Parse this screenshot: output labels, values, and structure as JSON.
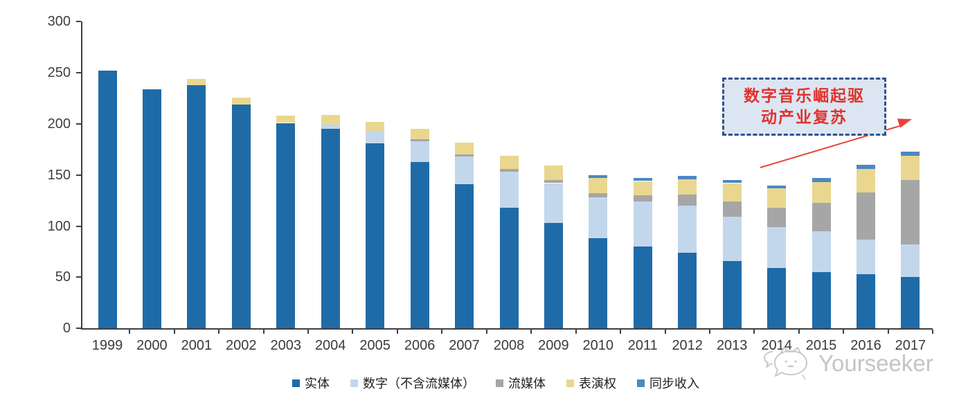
{
  "chart_data": {
    "type": "bar",
    "stacked": true,
    "categories": [
      "1999",
      "2000",
      "2001",
      "2002",
      "2003",
      "2004",
      "2005",
      "2006",
      "2007",
      "2008",
      "2009",
      "2010",
      "2011",
      "2012",
      "2013",
      "2014",
      "2015",
      "2016",
      "2017"
    ],
    "series": [
      {
        "name": "实体",
        "color": "#1f6ba8",
        "values": [
          252,
          234,
          238,
          219,
          201,
          195,
          181,
          163,
          141,
          118,
          103,
          88,
          80,
          74,
          66,
          59,
          55,
          53,
          50
        ]
      },
      {
        "name": "数字（不含流媒体）",
        "color": "#c3d7ec",
        "values": [
          0,
          0,
          0,
          0,
          0,
          4,
          12,
          20,
          27,
          35,
          39,
          40,
          44,
          46,
          43,
          40,
          40,
          34,
          32
        ]
      },
      {
        "name": "流媒体",
        "color": "#a6a6a6",
        "values": [
          0,
          0,
          0,
          0,
          0,
          0,
          0,
          2,
          2,
          3,
          3,
          4,
          6,
          11,
          15,
          19,
          28,
          46,
          63
        ]
      },
      {
        "name": "表演权",
        "color": "#e9d78f",
        "values": [
          0,
          0,
          6,
          7,
          7,
          10,
          9,
          10,
          12,
          13,
          14,
          15,
          14,
          15,
          18,
          19,
          20,
          23,
          24
        ]
      },
      {
        "name": "同步收入",
        "color": "#4d87c2",
        "values": [
          0,
          0,
          0,
          0,
          0,
          0,
          0,
          0,
          0,
          0,
          0,
          3,
          3,
          3,
          3,
          3,
          4,
          4,
          4
        ]
      }
    ],
    "ylim": [
      0,
      300
    ],
    "yticks": [
      0,
      50,
      100,
      150,
      200,
      250,
      300
    ],
    "grid": false,
    "legend_position": "bottom",
    "axis_color": "#3f3f3f"
  },
  "annotation": {
    "text_line1": "数字音乐崛起驱",
    "text_line2": "动产业复苏",
    "box_fill": "#dce6f2",
    "border_color": "#33508f",
    "text_color": "#e2312a",
    "arrow_color": "#e8413c"
  },
  "watermark": {
    "text": "Yourseeker",
    "color": "#c4c4c4"
  }
}
